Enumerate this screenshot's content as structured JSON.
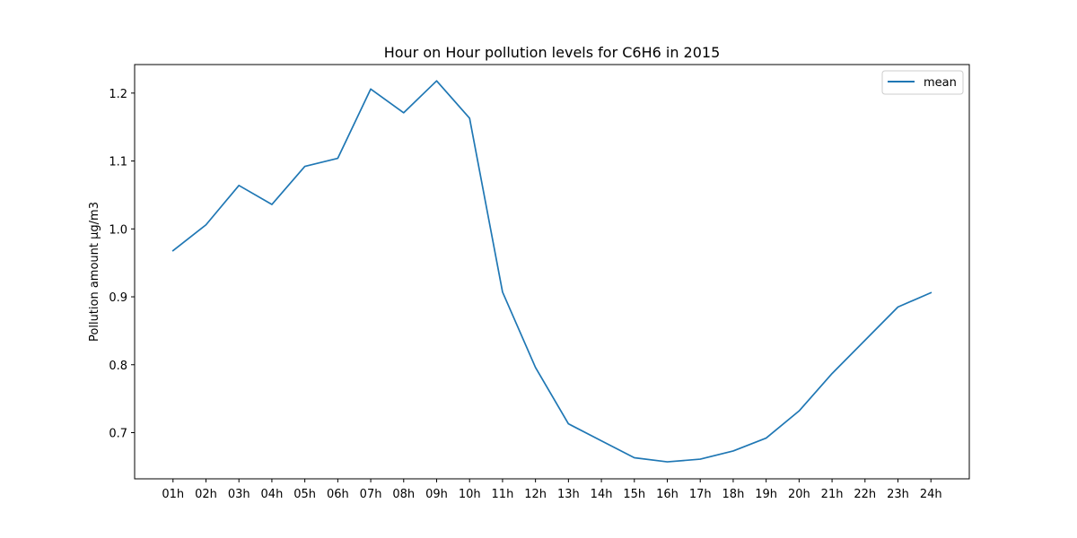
{
  "chart_data": {
    "type": "line",
    "title": "Hour on Hour pollution levels for C6H6 in 2015",
    "xlabel": "",
    "ylabel": "Pollution amount µg/m3",
    "categories": [
      "01h",
      "02h",
      "03h",
      "04h",
      "05h",
      "06h",
      "07h",
      "08h",
      "09h",
      "10h",
      "11h",
      "12h",
      "13h",
      "14h",
      "15h",
      "16h",
      "17h",
      "18h",
      "19h",
      "20h",
      "21h",
      "22h",
      "23h",
      "24h"
    ],
    "series": [
      {
        "name": "mean",
        "color": "#1f77b4",
        "values": [
          0.968,
          1.006,
          1.064,
          1.036,
          1.092,
          1.104,
          1.206,
          1.171,
          1.218,
          1.163,
          0.907,
          0.796,
          0.713,
          0.688,
          0.663,
          0.657,
          0.661,
          0.673,
          0.692,
          0.732,
          0.787,
          0.836,
          0.885,
          0.906
        ]
      }
    ],
    "ylim": [
      0.632,
      1.242
    ],
    "yticks": [
      "0.7",
      "0.8",
      "0.9",
      "1.0",
      "1.1",
      "1.2"
    ],
    "grid": false,
    "legend_position": "top-right"
  }
}
